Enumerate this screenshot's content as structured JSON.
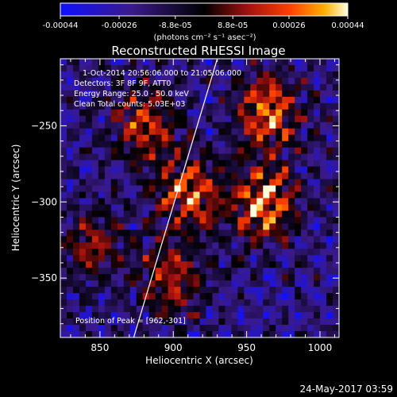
{
  "chart_data": {
    "type": "heatmap",
    "title": "Reconstructed RHESSI Image",
    "xlabel": "Heliocentric X (arcsec)",
    "ylabel": "Heliocentric Y (arcsec)",
    "xlim": [
      823,
      1013
    ],
    "ylim": [
      -389,
      -206
    ],
    "x_ticks": [
      850,
      900,
      950,
      1000
    ],
    "y_ticks": [
      -350,
      -300,
      -250
    ],
    "colorbar": {
      "ticks": [
        "-0.00044",
        "-0.00026",
        "-8.8e-05",
        "8.8e-05",
        "0.00026",
        "0.00044"
      ],
      "range": [
        -0.00044,
        0.00044
      ],
      "units": "(photons cm⁻² s⁻¹ asec⁻²)"
    },
    "limb_line": [
      {
        "x": 873,
        "y": -389
      },
      {
        "x": 930,
        "y": -206
      }
    ],
    "bright_regions": [
      {
        "x": 910,
        "y": -295,
        "level": 0.85
      },
      {
        "x": 962,
        "y": -301,
        "level": 1.0
      },
      {
        "x": 965,
        "y": -240,
        "level": 0.9
      },
      {
        "x": 880,
        "y": -250,
        "level": 0.75
      },
      {
        "x": 900,
        "y": -350,
        "level": 0.7
      },
      {
        "x": 845,
        "y": -330,
        "level": 0.6
      }
    ]
  },
  "annotations": {
    "time_range": "1-Oct-2014 20:56:06.000 to 21:05:06.000",
    "detectors": "Detectors: 3F 8F 9F, ATT0",
    "energy_range": "Energy Range: 25.0 - 50.0 keV",
    "clean_counts": "Clean     Total counts: 5.03E+03",
    "peak_position": "Position of Peak = [962,-301]"
  },
  "footer": {
    "timestamp": "24-May-2017 03:59"
  }
}
